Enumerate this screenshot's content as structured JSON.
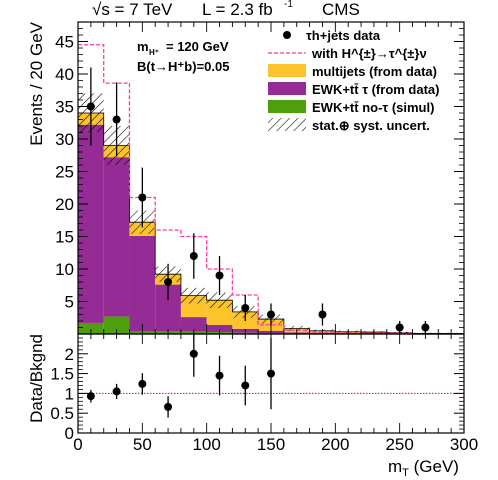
{
  "header": {
    "energy": "√s = 7 TeV",
    "lumi": "L = 2.3 fb",
    "lumi_exp": "-1",
    "experiment": "CMS"
  },
  "annotations": {
    "mass": "m",
    "mass_sub": "H⁺",
    "mass_value": "= 120 GeV",
    "br": "B(t→H⁺b)=0.05"
  },
  "chart_data": [
    {
      "type": "bar",
      "panel": "main",
      "x_bin_edges": [
        0,
        20,
        40,
        60,
        80,
        100,
        120,
        140,
        160,
        180,
        200,
        220,
        240,
        260,
        280,
        300
      ],
      "xlim": [
        0,
        300
      ],
      "ylim": [
        0,
        48
      ],
      "ylabel": "Events / 20 GeV",
      "xlabel": "",
      "y_ticks": [
        5,
        10,
        15,
        20,
        25,
        30,
        35,
        40,
        45
      ],
      "stack_series": [
        {
          "name": "EWK+tt̄ no-τ (simul)",
          "color": "#4f9e0e",
          "values": [
            1.7,
            2.7,
            0.4,
            0.4,
            0.4,
            0.3,
            0.2,
            0.1,
            0.05,
            0.05,
            0.05,
            0.05,
            0.05,
            0.0,
            0.0
          ]
        },
        {
          "name": "EWK+tt̄ τ (from data)",
          "color": "#952b95",
          "values": [
            30.5,
            24.5,
            14.7,
            7.2,
            2.2,
            1.1,
            0.6,
            0.4,
            0.2,
            0.15,
            0.1,
            0.1,
            0.05,
            0.05,
            0.05
          ]
        },
        {
          "name": "multijets (from data)",
          "color": "#fdc32c",
          "values": [
            1.8,
            1.8,
            2.1,
            1.6,
            3.3,
            3.8,
            2.6,
            1.8,
            0.6,
            0.3,
            0.2,
            0.15,
            0.1,
            0.05,
            0.05
          ]
        }
      ],
      "uncertainty": {
        "name": "stat.⊕ syst. uncert.",
        "values": [
          3.0,
          3.0,
          1.8,
          1.2,
          1.2,
          1.2,
          0.9,
          0.7,
          0.4,
          0.2,
          0.2,
          0.15,
          0.1,
          0.1,
          0.1
        ]
      },
      "signal_series": {
        "name": "with H^{±}→τ^{±}ν",
        "color": "#ff3b9c",
        "values": [
          44.5,
          38.6,
          21.0,
          16.0,
          15.0,
          10.0,
          6.0,
          1.4,
          0.6,
          0.3,
          0.15,
          0.15,
          0.15,
          0.0,
          0.0
        ]
      },
      "data_series": {
        "name": "τh+jets data",
        "x": [
          10,
          30,
          50,
          70,
          90,
          110,
          130,
          150,
          190,
          250,
          270
        ],
        "y": [
          35,
          33,
          21,
          8,
          12,
          9,
          4,
          3,
          3,
          1,
          1
        ],
        "yerr": [
          6,
          5.7,
          4.6,
          2.8,
          3.5,
          3,
          2,
          1.7,
          1.7,
          1,
          1
        ]
      },
      "legend_position": "top-right"
    },
    {
      "type": "scatter",
      "panel": "ratio",
      "xlim": [
        0,
        300
      ],
      "ylim": [
        0,
        2.5
      ],
      "ylabel": "Data/Bkgnd",
      "xlabel": "m_T (GeV)",
      "y_ticks": [
        0,
        0.5,
        1,
        1.5,
        2
      ],
      "y_tick_labels": [
        "0",
        "0.5",
        "1",
        "1.5",
        "2"
      ],
      "x_ticks": [
        0,
        50,
        100,
        150,
        200,
        250,
        300
      ],
      "x_tick_labels": [
        "0",
        "50",
        "100",
        "150",
        "200",
        "250",
        "300"
      ],
      "reference_line": 1.0,
      "reference_color": "#ff0000",
      "x": [
        10,
        30,
        50,
        70,
        90,
        110,
        130,
        150
      ],
      "y": [
        0.93,
        1.05,
        1.24,
        0.66,
        2.0,
        1.45,
        1.2,
        1.5
      ],
      "yerr": [
        0.16,
        0.19,
        0.27,
        0.27,
        0.58,
        0.5,
        0.5,
        0.9
      ]
    }
  ]
}
